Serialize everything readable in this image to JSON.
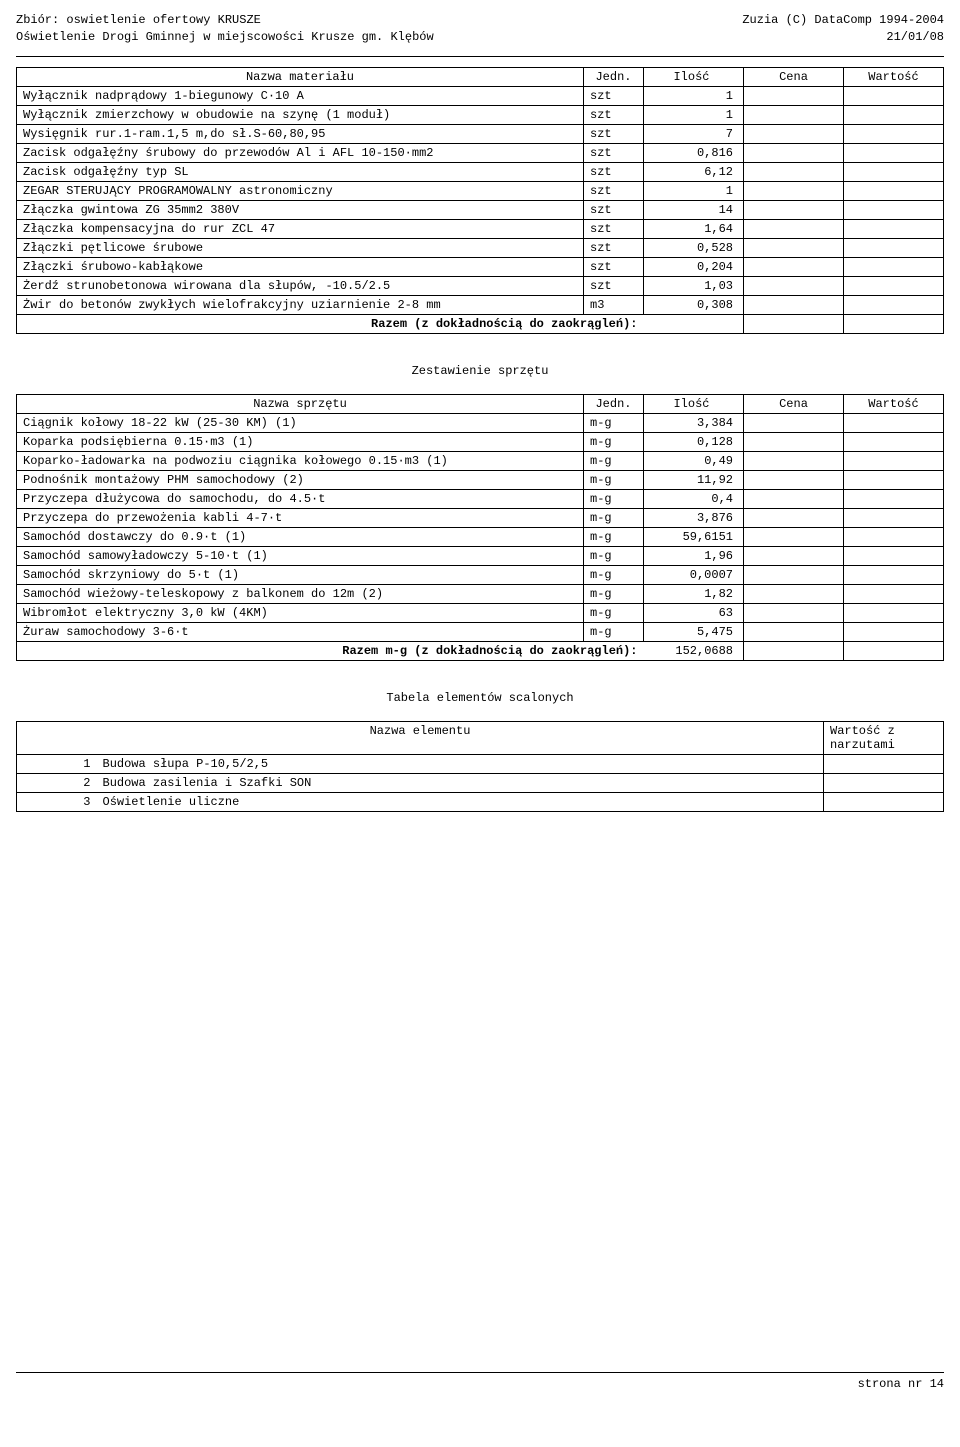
{
  "header": {
    "left1": "Zbiór: oswietlenie ofertowy KRUSZE",
    "left2": "Oświetlenie Drogi Gminnej w miejscowości Krusze gm. Klębów",
    "right1": "Zuzia (C) DataComp 1994-2004",
    "right2": "21/01/08"
  },
  "materials": {
    "headers": {
      "nazwa": "Nazwa materiału",
      "jedn": "Jedn.",
      "ilosc": "Ilość",
      "cena": "Cena",
      "wartosc": "Wartość"
    },
    "rows": [
      {
        "n": "Wyłącznik nadprądowy 1-biegunowy  C·10 A",
        "j": "szt",
        "i": "1"
      },
      {
        "n": "Wyłącznik zmierzchowy w obudowie na szynę (1 moduł)",
        "j": "szt",
        "i": "1"
      },
      {
        "n": "Wysięgnik rur.1-ram.1,5 m,do sł.S-60,80,95",
        "j": "szt",
        "i": "7"
      },
      {
        "n": "Zacisk odgałęźny śrubowy do przewodów Al i AFL 10-150·mm2",
        "j": "szt",
        "i": "0,816"
      },
      {
        "n": "Zacisk odgałęźny typ SL",
        "j": "szt",
        "i": "6,12"
      },
      {
        "n": "ZEGAR STERUJĄCY PROGRAMOWALNY astronomiczny",
        "j": "szt",
        "i": "1"
      },
      {
        "n": "Złączka gwintowa ZG 35mm2 380V",
        "j": "szt",
        "i": "14"
      },
      {
        "n": "Złączka kompensacyjna do rur ZCL 47",
        "j": "szt",
        "i": "1,64"
      },
      {
        "n": "Złączki pętlicowe śrubowe",
        "j": "szt",
        "i": "0,528"
      },
      {
        "n": "Złączki śrubowo-kabłąkowe",
        "j": "szt",
        "i": "0,204"
      },
      {
        "n": "Żerdź strunobetonowa wirowana dla słupów, -10.5/2.5",
        "j": "szt",
        "i": "1,03"
      },
      {
        "n": "Żwir do betonów zwykłych wielofrakcyjny uziarnienie 2-8 mm",
        "j": "m3",
        "i": "0,308"
      }
    ],
    "sum_label": "Razem (z dokładnością do zaokrągleń):"
  },
  "equipment": {
    "title": "Zestawienie sprzętu",
    "headers": {
      "nazwa": "Nazwa sprzętu",
      "jedn": "Jedn.",
      "ilosc": "Ilość",
      "cena": "Cena",
      "wartosc": "Wartość"
    },
    "rows": [
      {
        "n": "Ciągnik kołowy 18-22 kW (25-30 KM) (1)",
        "j": "m-g",
        "i": "3,384"
      },
      {
        "n": "Koparka podsiębierna 0.15·m3 (1)",
        "j": "m-g",
        "i": "0,128"
      },
      {
        "n": "Koparko-ładowarka na podwoziu ciągnika kołowego 0.15·m3 (1)",
        "j": "m-g",
        "i": "0,49"
      },
      {
        "n": "Podnośnik montażowy PHM samochodowy (2)",
        "j": "m-g",
        "i": "11,92"
      },
      {
        "n": "Przyczepa dłużycowa do samochodu, do 4.5·t",
        "j": "m-g",
        "i": "0,4"
      },
      {
        "n": "Przyczepa do przewożenia kabli 4-7·t",
        "j": "m-g",
        "i": "3,876"
      },
      {
        "n": "Samochód dostawczy do 0.9·t (1)",
        "j": "m-g",
        "i": "59,6151"
      },
      {
        "n": "Samochód samowyładowczy 5-10·t (1)",
        "j": "m-g",
        "i": "1,96"
      },
      {
        "n": "Samochód skrzyniowy do 5·t (1)",
        "j": "m-g",
        "i": "0,0007"
      },
      {
        "n": "Samochód wieżowy-teleskopowy z balkonem do 12m (2)",
        "j": "m-g",
        "i": "1,82"
      },
      {
        "n": "Wibromłot elektryczny 3,0 kW (4KM)",
        "j": "m-g",
        "i": "63"
      },
      {
        "n": "Żuraw samochodowy 3-6·t",
        "j": "m-g",
        "i": "5,475"
      }
    ],
    "sum_label": "Razem m-g (z dokładnością do zaokrągleń):",
    "sum_value": "152,0688"
  },
  "elements": {
    "title": "Tabela elementów scalonych",
    "headers": {
      "nazwa": "Nazwa elementu",
      "wartosc": "Wartość z narzutami"
    },
    "rows": [
      {
        "idx": "1",
        "n": "Budowa słupa P-10,5/2,5"
      },
      {
        "idx": "2",
        "n": "Budowa zasilenia i Szafki SON"
      },
      {
        "idx": "3",
        "n": "Oświetlenie uliczne"
      }
    ]
  },
  "footer": {
    "page": "strona nr  14"
  }
}
